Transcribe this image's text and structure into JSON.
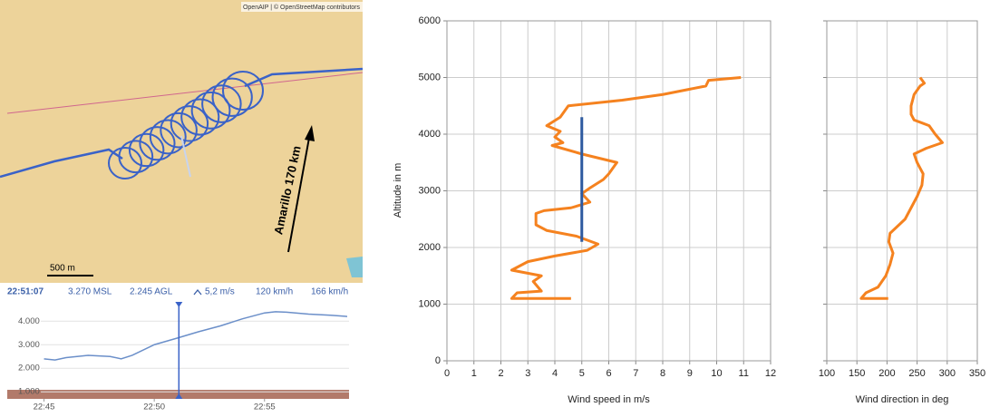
{
  "map": {
    "attribution": "OpenAIP | © OpenStreetMap contributors",
    "direction_label": "Amarillo 170 km",
    "scale_label": "500 m"
  },
  "flight_info": {
    "time": "22:51:07",
    "altitude_msl": "3.270 MSL",
    "altitude_agl": "2.245 AGL",
    "vario": "5,2 m/s",
    "ground_speed": "120 km/h",
    "wind_speed": "166 km/h"
  },
  "chart_data": [
    {
      "type": "line",
      "color": "#6b8fc9",
      "x": [
        "22:45:00",
        "22:45:30",
        "22:46:00",
        "22:47:00",
        "22:48:00",
        "22:48:30",
        "22:49:00",
        "22:50:00",
        "22:51:00",
        "22:52:00",
        "22:53:00",
        "22:54:00",
        "22:55:00",
        "22:55:30",
        "22:56:00",
        "22:57:00",
        "22:58:00",
        "22:58:45"
      ],
      "values": [
        2400,
        2350,
        2450,
        2550,
        2500,
        2400,
        2550,
        3000,
        3270,
        3550,
        3800,
        4100,
        4350,
        4400,
        4380,
        4300,
        4250,
        4200
      ],
      "xlim": [
        "22:43:20",
        "22:58:50"
      ],
      "xticks": [
        "22:45",
        "22:50",
        "22:55"
      ],
      "ylim": [
        700,
        4550
      ],
      "yticks": [
        {
          "value": 1000,
          "label": "1.000"
        },
        {
          "value": 2000,
          "label": "2.000"
        },
        {
          "value": 3000,
          "label": "3.000"
        },
        {
          "value": 4000,
          "label": "4.000"
        }
      ],
      "grid": true
    },
    {
      "type": "line",
      "ylabel": "Altitude in m",
      "xlabel": "Wind speed in m/s",
      "series": [
        {
          "color": "#f5821f",
          "x": [
            4.6,
            2.4,
            2.6,
            3.5,
            3.2,
            3.5,
            2.4,
            3.0,
            4.0,
            5.2,
            5.6,
            4.8,
            3.7,
            3.3,
            3.3,
            3.6,
            4.6,
            5.3,
            5.0,
            5.3,
            5.8,
            6.0,
            6.3,
            5.0,
            3.9,
            4.3,
            4.0,
            4.2,
            3.7,
            4.2,
            4.5,
            6.5,
            8.0,
            9.6,
            9.7,
            10.9
          ],
          "y": [
            1100,
            1100,
            1200,
            1230,
            1400,
            1500,
            1600,
            1750,
            1850,
            1950,
            2060,
            2200,
            2300,
            2400,
            2600,
            2650,
            2700,
            2800,
            2950,
            3050,
            3200,
            3300,
            3500,
            3650,
            3800,
            3850,
            3950,
            4050,
            4150,
            4300,
            4500,
            4600,
            4700,
            4850,
            4950,
            5000
          ]
        },
        {
          "color": "#2e5aa0",
          "x": [
            5,
            5
          ],
          "y": [
            2100,
            4300
          ]
        }
      ],
      "xlim": [
        0,
        12
      ],
      "xticks": [
        0,
        1,
        2,
        3,
        4,
        5,
        6,
        7,
        8,
        9,
        10,
        11,
        12
      ],
      "ylim": [
        0,
        6000
      ],
      "yticks": [
        0,
        1000,
        2000,
        3000,
        4000,
        5000,
        6000
      ],
      "ytick_labels": true,
      "grid": true
    },
    {
      "type": "line",
      "xlabel": "Wind direction in deg",
      "series": [
        {
          "color": "#f5821f",
          "x": [
            202,
            157,
            165,
            185,
            198,
            205,
            210,
            203,
            205,
            215,
            230,
            240,
            250,
            258,
            260,
            250,
            245,
            265,
            292,
            280,
            270,
            245,
            240,
            240,
            245,
            255,
            262,
            255
          ],
          "y": [
            1100,
            1100,
            1200,
            1300,
            1500,
            1700,
            1900,
            2100,
            2250,
            2350,
            2500,
            2700,
            2900,
            3100,
            3300,
            3500,
            3650,
            3750,
            3850,
            4000,
            4150,
            4250,
            4350,
            4500,
            4700,
            4850,
            4900,
            5000
          ]
        }
      ],
      "xlim": [
        100,
        350
      ],
      "xticks": [
        100,
        150,
        200,
        250,
        300,
        350
      ],
      "ylim": [
        0,
        6000
      ],
      "yticks": [
        0,
        1000,
        2000,
        3000,
        4000,
        5000,
        6000
      ],
      "ytick_labels": false,
      "grid": true
    }
  ]
}
